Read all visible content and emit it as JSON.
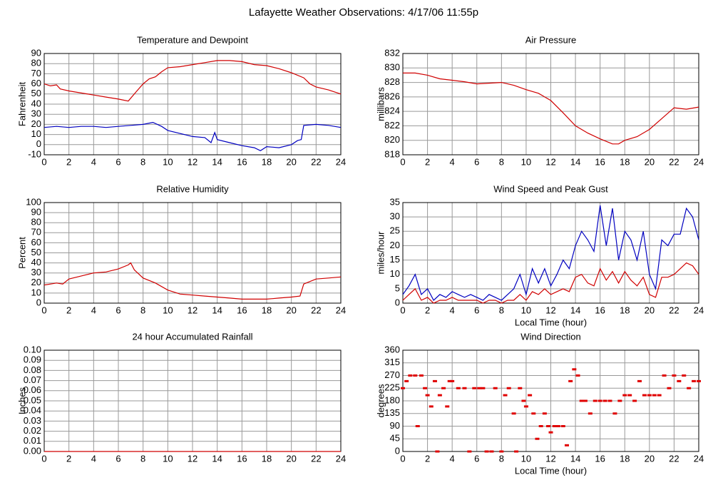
{
  "title": "Lafayette Weather Observations: 4/17/06 11:55p",
  "chart_data": [
    {
      "type": "line",
      "title": "Temperature and Dewpoint",
      "ylabel": "Fahrenheit",
      "xlim": [
        0,
        24
      ],
      "xticks": [
        0,
        2,
        4,
        6,
        8,
        10,
        12,
        14,
        16,
        18,
        20,
        22,
        24
      ],
      "ylim": [
        -10,
        90
      ],
      "yticks": [
        -10,
        0,
        10,
        20,
        30,
        40,
        50,
        60,
        70,
        80,
        90
      ],
      "grid": true,
      "series": [
        {
          "color": "#d00000",
          "x": [
            0,
            0.5,
            1,
            1.3,
            2,
            3,
            4,
            5,
            6,
            6.8,
            7.5,
            8,
            8.5,
            9,
            9.5,
            10,
            11,
            12,
            13,
            14,
            15,
            16,
            17,
            18,
            19,
            20,
            21,
            21.5,
            22,
            23,
            24
          ],
          "values": [
            60,
            58,
            59,
            55,
            53,
            51,
            49,
            47,
            45,
            43,
            53,
            60,
            65,
            67,
            72,
            76,
            77,
            79,
            81,
            83,
            83,
            82,
            79,
            78,
            75,
            71,
            66,
            60,
            57,
            54,
            50
          ]
        },
        {
          "color": "#0000c0",
          "x": [
            0,
            1,
            2,
            3,
            4,
            5,
            6,
            7,
            8,
            8.8,
            9.5,
            10,
            11,
            12,
            13,
            13.5,
            13.8,
            14,
            15,
            16,
            17,
            17.5,
            18,
            19,
            20,
            20.5,
            20.8,
            21,
            22,
            23,
            24
          ],
          "values": [
            17,
            18,
            17,
            18,
            18,
            17,
            18,
            19,
            20,
            22,
            18,
            14,
            11,
            8,
            7,
            2,
            12,
            5,
            2,
            -1,
            -3,
            -6,
            -2,
            -3,
            0,
            4,
            5,
            19,
            20,
            19,
            17
          ]
        }
      ]
    },
    {
      "type": "line",
      "title": "Air Pressure",
      "ylabel": "millibars",
      "xlim": [
        0,
        24
      ],
      "xticks": [
        0,
        2,
        4,
        6,
        8,
        10,
        12,
        14,
        16,
        18,
        20,
        22,
        24
      ],
      "ylim": [
        818,
        832
      ],
      "yticks": [
        818,
        820,
        822,
        824,
        826,
        828,
        830,
        832
      ],
      "grid": true,
      "series": [
        {
          "color": "#d00000",
          "x": [
            0,
            1,
            2,
            3,
            4,
            5,
            6,
            7,
            8,
            9,
            10,
            11,
            12,
            13,
            14,
            15,
            16,
            17,
            17.5,
            18,
            19,
            20,
            21,
            22,
            23,
            24
          ],
          "values": [
            829.3,
            829.3,
            829,
            828.5,
            828.3,
            828.1,
            827.8,
            827.9,
            828,
            827.6,
            827,
            826.5,
            825.5,
            823.8,
            822,
            821,
            820.2,
            819.5,
            819.5,
            820,
            820.5,
            821.5,
            823,
            824.5,
            824.3,
            824.6
          ]
        }
      ]
    },
    {
      "type": "line",
      "title": "Relative Humidity",
      "ylabel": "Percent",
      "xlim": [
        0,
        24
      ],
      "xticks": [
        0,
        2,
        4,
        6,
        8,
        10,
        12,
        14,
        16,
        18,
        20,
        22,
        24
      ],
      "ylim": [
        0,
        100
      ],
      "yticks": [
        0,
        10,
        20,
        30,
        40,
        50,
        60,
        70,
        80,
        90,
        100
      ],
      "grid": true,
      "series": [
        {
          "color": "#d00000",
          "x": [
            0,
            1,
            1.5,
            2,
            3,
            4,
            5,
            6,
            6.8,
            7,
            7.3,
            8,
            9,
            10,
            11,
            12,
            13,
            14,
            15,
            16,
            17,
            18,
            19,
            20,
            20.7,
            21,
            22,
            23,
            24
          ],
          "values": [
            18,
            20,
            19,
            24,
            27,
            30,
            31,
            34,
            38,
            40,
            33,
            25,
            20,
            13,
            9,
            8,
            7,
            6,
            5,
            4,
            4,
            4,
            5,
            6,
            7,
            19,
            24,
            25,
            26
          ]
        }
      ]
    },
    {
      "type": "line",
      "title": "Wind Speed and Peak Gust",
      "ylabel": "miles/hour",
      "xlabel": "Local Time (hour)",
      "xlim": [
        0,
        24
      ],
      "xticks": [
        0,
        2,
        4,
        6,
        8,
        10,
        12,
        14,
        16,
        18,
        20,
        22,
        24
      ],
      "ylim": [
        0,
        35
      ],
      "yticks": [
        0,
        5,
        10,
        15,
        20,
        25,
        30,
        35
      ],
      "grid": true,
      "series": [
        {
          "color": "#0000c0",
          "x": [
            0,
            0.5,
            1,
            1.5,
            2,
            2.5,
            3,
            3.5,
            4,
            4.5,
            5,
            5.5,
            6,
            6.5,
            7,
            7.5,
            8,
            8.5,
            9,
            9.5,
            10,
            10.5,
            11,
            11.5,
            12,
            12.5,
            13,
            13.5,
            14,
            14.5,
            15,
            15.5,
            16,
            16.5,
            17,
            17.5,
            18,
            18.5,
            19,
            19.5,
            20,
            20.5,
            21,
            21.5,
            22,
            22.5,
            23,
            23.5,
            24
          ],
          "values": [
            3,
            6,
            10,
            3,
            5,
            1,
            3,
            2,
            4,
            3,
            2,
            3,
            2,
            1,
            3,
            2,
            1,
            3,
            5,
            10,
            3,
            12,
            7,
            12,
            6,
            10,
            15,
            12,
            20,
            25,
            22,
            18,
            34,
            20,
            33,
            15,
            25,
            22,
            15,
            25,
            10,
            5,
            22,
            20,
            24,
            24,
            33,
            30,
            22
          ]
        },
        {
          "color": "#d00000",
          "x": [
            0,
            0.5,
            1,
            1.5,
            2,
            2.5,
            3,
            3.5,
            4,
            4.5,
            5,
            5.5,
            6,
            6.5,
            7,
            7.5,
            8,
            8.5,
            9,
            9.5,
            10,
            10.5,
            11,
            11.5,
            12,
            12.5,
            13,
            13.5,
            14,
            14.5,
            15,
            15.5,
            16,
            16.5,
            17,
            17.5,
            18,
            18.5,
            19,
            19.5,
            20,
            20.5,
            21,
            21.5,
            22,
            22.5,
            23,
            23.5,
            24
          ],
          "values": [
            1,
            3,
            5,
            1,
            2,
            0,
            1,
            1,
            2,
            1,
            1,
            1,
            1,
            0,
            1,
            1,
            0,
            1,
            1,
            3,
            1,
            4,
            3,
            5,
            3,
            4,
            5,
            4,
            9,
            10,
            7,
            6,
            12,
            8,
            11,
            7,
            11,
            8,
            6,
            9,
            3,
            2,
            9,
            9,
            10,
            12,
            14,
            13,
            10
          ]
        }
      ]
    },
    {
      "type": "line",
      "title": "24 hour Accumulated Rainfall",
      "ylabel": "Inches",
      "xlim": [
        0,
        24
      ],
      "xticks": [
        0,
        2,
        4,
        6,
        8,
        10,
        12,
        14,
        16,
        18,
        20,
        22,
        24
      ],
      "ylim": [
        0,
        0.1
      ],
      "yticks": [
        {
          "value": 0,
          "label": "0.00"
        },
        {
          "value": 0.01,
          "label": "0.01"
        },
        {
          "value": 0.02,
          "label": "0.02"
        },
        {
          "value": 0.03,
          "label": "0.03"
        },
        {
          "value": 0.04,
          "label": "0.04"
        },
        {
          "value": 0.05,
          "label": "0.05"
        },
        {
          "value": 0.06,
          "label": "0.06"
        },
        {
          "value": 0.07,
          "label": "0.07"
        },
        {
          "value": 0.08,
          "label": "0.08"
        },
        {
          "value": 0.09,
          "label": "0.09"
        },
        {
          "value": 0.1,
          "label": "0.10"
        }
      ],
      "grid": true,
      "series": [
        {
          "color": "#d00000",
          "x": [
            0,
            24
          ],
          "values": [
            0,
            0
          ]
        }
      ]
    },
    {
      "type": "scatter",
      "title": "Wind Direction",
      "ylabel": "degrees",
      "xlabel": "Local Time (hour)",
      "xlim": [
        0,
        24
      ],
      "xticks": [
        0,
        2,
        4,
        6,
        8,
        10,
        12,
        14,
        16,
        18,
        20,
        22,
        24
      ],
      "ylim": [
        0,
        360
      ],
      "yticks": [
        0,
        45,
        90,
        135,
        180,
        225,
        270,
        315,
        360
      ],
      "grid": true,
      "series": [
        {
          "color": "#e00000",
          "x": [
            0,
            0.3,
            0.6,
            1,
            1.2,
            1.5,
            1.8,
            2,
            2.3,
            2.6,
            2.8,
            3,
            3.3,
            3.6,
            3.8,
            4,
            4.5,
            5,
            5.4,
            5.8,
            6.2,
            6.5,
            6.8,
            7.2,
            7.5,
            8,
            8.3,
            8.6,
            9,
            9.2,
            9.5,
            9.8,
            10,
            10.3,
            10.6,
            10.9,
            11.2,
            11.5,
            11.8,
            12,
            12.3,
            12.6,
            13,
            13.3,
            13.6,
            13.9,
            14.2,
            14.5,
            14.8,
            15.2,
            15.6,
            16,
            16.4,
            16.8,
            17.2,
            17.6,
            18,
            18.4,
            18.8,
            19.2,
            19.6,
            20,
            20.4,
            20.8,
            21.2,
            21.6,
            22,
            22.4,
            22.8,
            23.2,
            23.6,
            24
          ],
          "values": [
            225,
            250,
            270,
            270,
            90,
            270,
            225,
            200,
            160,
            250,
            0,
            200,
            225,
            160,
            250,
            250,
            225,
            225,
            0,
            225,
            225,
            225,
            0,
            0,
            225,
            0,
            200,
            225,
            135,
            0,
            225,
            180,
            160,
            200,
            135,
            45,
            90,
            135,
            90,
            68,
            90,
            90,
            90,
            22,
            250,
            292,
            270,
            180,
            180,
            135,
            180,
            180,
            180,
            180,
            135,
            180,
            200,
            200,
            180,
            250,
            200,
            200,
            200,
            200,
            270,
            225,
            270,
            250,
            270,
            225,
            250,
            250
          ]
        }
      ]
    }
  ]
}
